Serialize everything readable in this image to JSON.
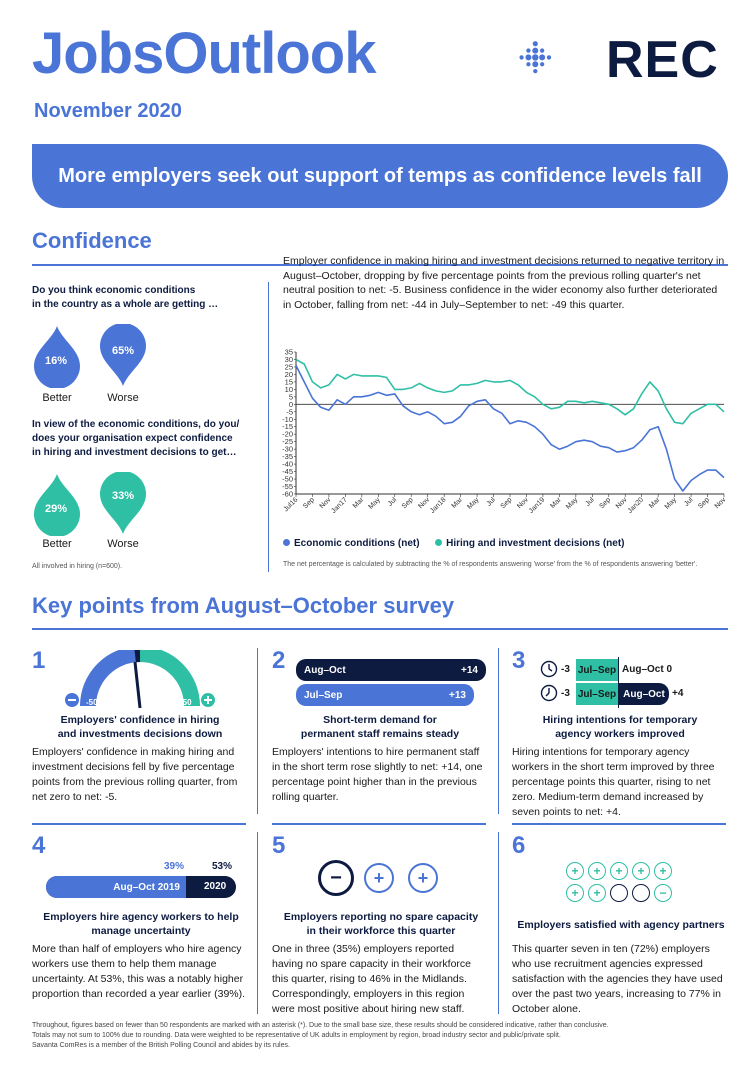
{
  "header": {
    "title": "JobsOutlook",
    "date": "November 2020",
    "logo_text": "REC",
    "banner": "More employers seek out support of temps as confidence levels fall"
  },
  "confidence": {
    "section_title": "Confidence",
    "q1": {
      "line1": "Do you think economic conditions",
      "line2": "in the country as a whole are getting …",
      "better_pct": "16%",
      "better_label": "Better",
      "worse_pct": "65%",
      "worse_label": "Worse"
    },
    "q2": {
      "line1": "In view of the economic conditions, do you/",
      "line2": "does your organisation expect confidence",
      "line3": "in hiring and investment decisions to get…",
      "better_pct": "29%",
      "better_label": "Better",
      "worse_pct": "33%",
      "worse_label": "Worse"
    },
    "sample_note": "All involved in hiring (n=600).",
    "chart_intro": "Employer confidence in making hiring and investment decisions returned to negative territory in August–October, dropping by five percentage points from the previous rolling quarter's net neutral position to net: -5. Business confidence in the wider economy also further deteriorated in October, falling from net: -44 in July–September to net: -49 this quarter.",
    "chart_note": "The net percentage is calculated by subtracting the % of respondents answering 'worse' from the % of respondents answering 'better'."
  },
  "colors": {
    "blue": "#4a74d6",
    "teal": "#2fbfa5",
    "navy": "#0d1b40"
  },
  "chart_data": {
    "type": "line",
    "x": [
      "Jul16",
      "Aug16",
      "Sep16",
      "Oct16",
      "Nov16",
      "Dec16",
      "Jan17",
      "Feb17",
      "Mar17",
      "Apr17",
      "May17",
      "Jun17",
      "Jul17",
      "Aug17",
      "Sep17",
      "Oct17",
      "Nov17",
      "Dec17",
      "Jan18",
      "Feb18",
      "Mar18",
      "Apr18",
      "May18",
      "Jun18",
      "Jul18",
      "Aug18",
      "Sep18",
      "Oct18",
      "Nov18",
      "Dec18",
      "Jan19",
      "Feb19",
      "Mar19",
      "Apr19",
      "May19",
      "Jun19",
      "Jul19",
      "Aug19",
      "Sep19",
      "Oct19",
      "Nov19",
      "Dec19",
      "Jan20",
      "Feb20",
      "Mar20",
      "Apr20",
      "May20",
      "Jun20",
      "Jul20",
      "Aug20",
      "Sep20",
      "Oct20",
      "Nov20"
    ],
    "x_tick_labels": [
      "Jul16",
      "Sep",
      "Nov",
      "Jan17",
      "Mar",
      "May",
      "Jul",
      "Sep",
      "Nov",
      "Jan18",
      "Mar",
      "May",
      "Jul",
      "Sep",
      "Nov",
      "Jan19",
      "Mar",
      "May",
      "Jul",
      "Sep",
      "Nov",
      "Jan20",
      "Mar",
      "May",
      "Jul",
      "Sep",
      "Nov"
    ],
    "y_ticks": [
      35,
      30,
      25,
      20,
      15,
      10,
      5,
      0,
      -5,
      -10,
      -15,
      -20,
      -25,
      -30,
      -35,
      -40,
      -45,
      -50,
      -55,
      -60
    ],
    "ylim": [
      -60,
      35
    ],
    "grid": false,
    "legend_position": "bottom",
    "series": [
      {
        "name": "Economic conditions (net)",
        "color": "#4a74d6",
        "values": [
          26,
          15,
          4,
          -2,
          -4,
          3,
          0,
          5,
          5,
          6,
          8,
          6,
          7,
          -1,
          -5,
          -7,
          -5,
          -8,
          -13,
          -12,
          -8,
          -1,
          2,
          3,
          -3,
          -6,
          -13,
          -11,
          -12,
          -15,
          -20,
          -27,
          -30,
          -28,
          -25,
          -24,
          -25,
          -28,
          -29,
          -32,
          -31,
          -29,
          -24,
          -17,
          -15,
          -30,
          -50,
          -58,
          -51,
          -47,
          -44,
          -44,
          -49
        ]
      },
      {
        "name": "Hiring and investment decisions (net)",
        "color": "#2fbfa5",
        "values": [
          30,
          27,
          15,
          11,
          13,
          20,
          17,
          20,
          19,
          19,
          19,
          18,
          10,
          10,
          11,
          14,
          11,
          9,
          8,
          9,
          13,
          13,
          14,
          16,
          15,
          15,
          16,
          13,
          8,
          5,
          0,
          -3,
          -2,
          2,
          2,
          1,
          2,
          1,
          0,
          -3,
          -7,
          -3,
          7,
          15,
          9,
          -3,
          -12,
          -13,
          -6,
          -3,
          0,
          0,
          -5
        ]
      }
    ]
  },
  "key_points": {
    "section_title": "Key points from August–October survey",
    "kp1": {
      "num": "1",
      "gauge_min": "-50",
      "gauge_max": "+50",
      "gauge_value": -5,
      "minus": "−",
      "plus": "+",
      "caption1": "Employers' confidence in hiring",
      "caption2": "and investments decisions down",
      "body": "Employers' confidence in making hiring and investment decisions fell by five percentage points from the previous rolling quarter, from net zero to net: -5."
    },
    "kp2": {
      "num": "2",
      "bar1_label": "Aug–Oct",
      "bar1_value": "+14",
      "bar2_label": "Jul–Sep",
      "bar2_value": "+13",
      "caption1": "Short-term demand for",
      "caption2": "permanent staff remains steady",
      "body": "Employers' intentions to hire permanent staff in the short term rose slightly to net: +14, one percentage point higher than in the previous rolling quarter."
    },
    "kp3": {
      "num": "3",
      "row1_left": "-3",
      "row1_mid": "Jul–Sep",
      "row1_right": "Aug–Oct 0",
      "row2_left": "-3",
      "row2_mid": "Jul–Sep",
      "row2_badge": "Aug–Oct",
      "row2_right": "+4",
      "caption1": "Hiring intentions for temporary",
      "caption2": "agency workers improved",
      "body": "Hiring intentions for temporary agency workers in the short term improved by three percentage points this quarter, rising to net zero. Medium-term demand increased by seven points to net: +4."
    },
    "kp4": {
      "num": "4",
      "pct_2019": "39%",
      "pct_2020": "53%",
      "bar_2019_label": "Aug–Oct 2019",
      "bar_2020_label": "2020",
      "value_2019": 39,
      "value_2020": 53,
      "caption1": "Employers hire agency workers to help",
      "caption2": "manage uncertainty",
      "body": "More than half of employers who hire agency workers use them to help them manage uncertainty. At 53%, this was a notably higher proportion than recorded a year earlier (39%)."
    },
    "kp5": {
      "num": "5",
      "minus": "−",
      "plus": "+",
      "caption1": "Employers reporting no spare capacity",
      "caption2": "in their workforce this quarter",
      "body": "One in three (35%) employers reported having no spare capacity in their workforce this quarter, rising to 46% in the Midlands. Correspondingly, employers in this region were most positive about hiring new staff."
    },
    "kp6": {
      "num": "6",
      "plus": "+",
      "minus": "−",
      "caption": "Employers satisfied with agency partners",
      "body": "This quarter seven in ten (72%) employers who use recruitment agencies expressed satisfaction with the agencies they have used over the past two years, increasing to 77% in October alone."
    }
  },
  "footer": {
    "line1": "Throughout, figures based on fewer than 50 respondents are marked with an asterisk (*). Due to the small base size, these results should be considered indicative, rather than conclusive.",
    "line2": "Totals may not sum to 100% due to rounding. Data were weighted to be representative of UK adults in employment by region, broad industry sector and public/private split.",
    "line3": "Savanta ComRes is a member of the British Polling Council and abides by its rules."
  }
}
